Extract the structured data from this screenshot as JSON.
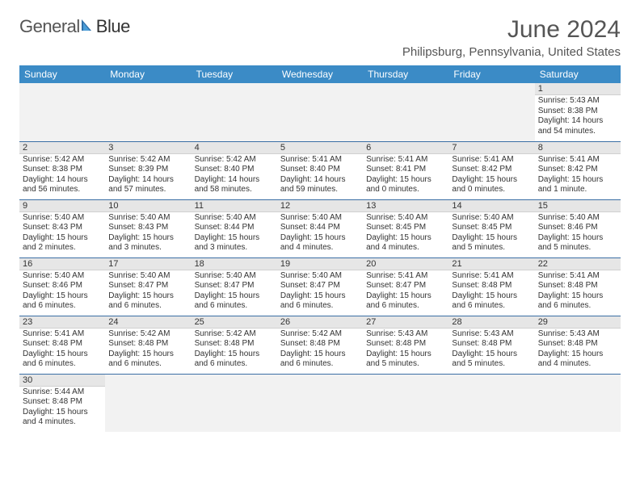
{
  "logo": {
    "text1": "General",
    "text2": "Blue"
  },
  "title": "June 2024",
  "location": "Philipsburg, Pennsylvania, United States",
  "colors": {
    "header_bg": "#3b8bc6",
    "header_text": "#ffffff",
    "daynum_bg": "#e6e6e6",
    "row_border": "#3b6fa5",
    "logo_tri": "#2f6fa8"
  },
  "day_headers": [
    "Sunday",
    "Monday",
    "Tuesday",
    "Wednesday",
    "Thursday",
    "Friday",
    "Saturday"
  ],
  "weeks": [
    [
      null,
      null,
      null,
      null,
      null,
      null,
      {
        "n": "1",
        "sr": "Sunrise: 5:43 AM",
        "ss": "Sunset: 8:38 PM",
        "dl": "Daylight: 14 hours and 54 minutes."
      }
    ],
    [
      {
        "n": "2",
        "sr": "Sunrise: 5:42 AM",
        "ss": "Sunset: 8:38 PM",
        "dl": "Daylight: 14 hours and 56 minutes."
      },
      {
        "n": "3",
        "sr": "Sunrise: 5:42 AM",
        "ss": "Sunset: 8:39 PM",
        "dl": "Daylight: 14 hours and 57 minutes."
      },
      {
        "n": "4",
        "sr": "Sunrise: 5:42 AM",
        "ss": "Sunset: 8:40 PM",
        "dl": "Daylight: 14 hours and 58 minutes."
      },
      {
        "n": "5",
        "sr": "Sunrise: 5:41 AM",
        "ss": "Sunset: 8:40 PM",
        "dl": "Daylight: 14 hours and 59 minutes."
      },
      {
        "n": "6",
        "sr": "Sunrise: 5:41 AM",
        "ss": "Sunset: 8:41 PM",
        "dl": "Daylight: 15 hours and 0 minutes."
      },
      {
        "n": "7",
        "sr": "Sunrise: 5:41 AM",
        "ss": "Sunset: 8:42 PM",
        "dl": "Daylight: 15 hours and 0 minutes."
      },
      {
        "n": "8",
        "sr": "Sunrise: 5:41 AM",
        "ss": "Sunset: 8:42 PM",
        "dl": "Daylight: 15 hours and 1 minute."
      }
    ],
    [
      {
        "n": "9",
        "sr": "Sunrise: 5:40 AM",
        "ss": "Sunset: 8:43 PM",
        "dl": "Daylight: 15 hours and 2 minutes."
      },
      {
        "n": "10",
        "sr": "Sunrise: 5:40 AM",
        "ss": "Sunset: 8:43 PM",
        "dl": "Daylight: 15 hours and 3 minutes."
      },
      {
        "n": "11",
        "sr": "Sunrise: 5:40 AM",
        "ss": "Sunset: 8:44 PM",
        "dl": "Daylight: 15 hours and 3 minutes."
      },
      {
        "n": "12",
        "sr": "Sunrise: 5:40 AM",
        "ss": "Sunset: 8:44 PM",
        "dl": "Daylight: 15 hours and 4 minutes."
      },
      {
        "n": "13",
        "sr": "Sunrise: 5:40 AM",
        "ss": "Sunset: 8:45 PM",
        "dl": "Daylight: 15 hours and 4 minutes."
      },
      {
        "n": "14",
        "sr": "Sunrise: 5:40 AM",
        "ss": "Sunset: 8:45 PM",
        "dl": "Daylight: 15 hours and 5 minutes."
      },
      {
        "n": "15",
        "sr": "Sunrise: 5:40 AM",
        "ss": "Sunset: 8:46 PM",
        "dl": "Daylight: 15 hours and 5 minutes."
      }
    ],
    [
      {
        "n": "16",
        "sr": "Sunrise: 5:40 AM",
        "ss": "Sunset: 8:46 PM",
        "dl": "Daylight: 15 hours and 6 minutes."
      },
      {
        "n": "17",
        "sr": "Sunrise: 5:40 AM",
        "ss": "Sunset: 8:47 PM",
        "dl": "Daylight: 15 hours and 6 minutes."
      },
      {
        "n": "18",
        "sr": "Sunrise: 5:40 AM",
        "ss": "Sunset: 8:47 PM",
        "dl": "Daylight: 15 hours and 6 minutes."
      },
      {
        "n": "19",
        "sr": "Sunrise: 5:40 AM",
        "ss": "Sunset: 8:47 PM",
        "dl": "Daylight: 15 hours and 6 minutes."
      },
      {
        "n": "20",
        "sr": "Sunrise: 5:41 AM",
        "ss": "Sunset: 8:47 PM",
        "dl": "Daylight: 15 hours and 6 minutes."
      },
      {
        "n": "21",
        "sr": "Sunrise: 5:41 AM",
        "ss": "Sunset: 8:48 PM",
        "dl": "Daylight: 15 hours and 6 minutes."
      },
      {
        "n": "22",
        "sr": "Sunrise: 5:41 AM",
        "ss": "Sunset: 8:48 PM",
        "dl": "Daylight: 15 hours and 6 minutes."
      }
    ],
    [
      {
        "n": "23",
        "sr": "Sunrise: 5:41 AM",
        "ss": "Sunset: 8:48 PM",
        "dl": "Daylight: 15 hours and 6 minutes."
      },
      {
        "n": "24",
        "sr": "Sunrise: 5:42 AM",
        "ss": "Sunset: 8:48 PM",
        "dl": "Daylight: 15 hours and 6 minutes."
      },
      {
        "n": "25",
        "sr": "Sunrise: 5:42 AM",
        "ss": "Sunset: 8:48 PM",
        "dl": "Daylight: 15 hours and 6 minutes."
      },
      {
        "n": "26",
        "sr": "Sunrise: 5:42 AM",
        "ss": "Sunset: 8:48 PM",
        "dl": "Daylight: 15 hours and 6 minutes."
      },
      {
        "n": "27",
        "sr": "Sunrise: 5:43 AM",
        "ss": "Sunset: 8:48 PM",
        "dl": "Daylight: 15 hours and 5 minutes."
      },
      {
        "n": "28",
        "sr": "Sunrise: 5:43 AM",
        "ss": "Sunset: 8:48 PM",
        "dl": "Daylight: 15 hours and 5 minutes."
      },
      {
        "n": "29",
        "sr": "Sunrise: 5:43 AM",
        "ss": "Sunset: 8:48 PM",
        "dl": "Daylight: 15 hours and 4 minutes."
      }
    ],
    [
      {
        "n": "30",
        "sr": "Sunrise: 5:44 AM",
        "ss": "Sunset: 8:48 PM",
        "dl": "Daylight: 15 hours and 4 minutes."
      },
      null,
      null,
      null,
      null,
      null,
      null
    ]
  ]
}
